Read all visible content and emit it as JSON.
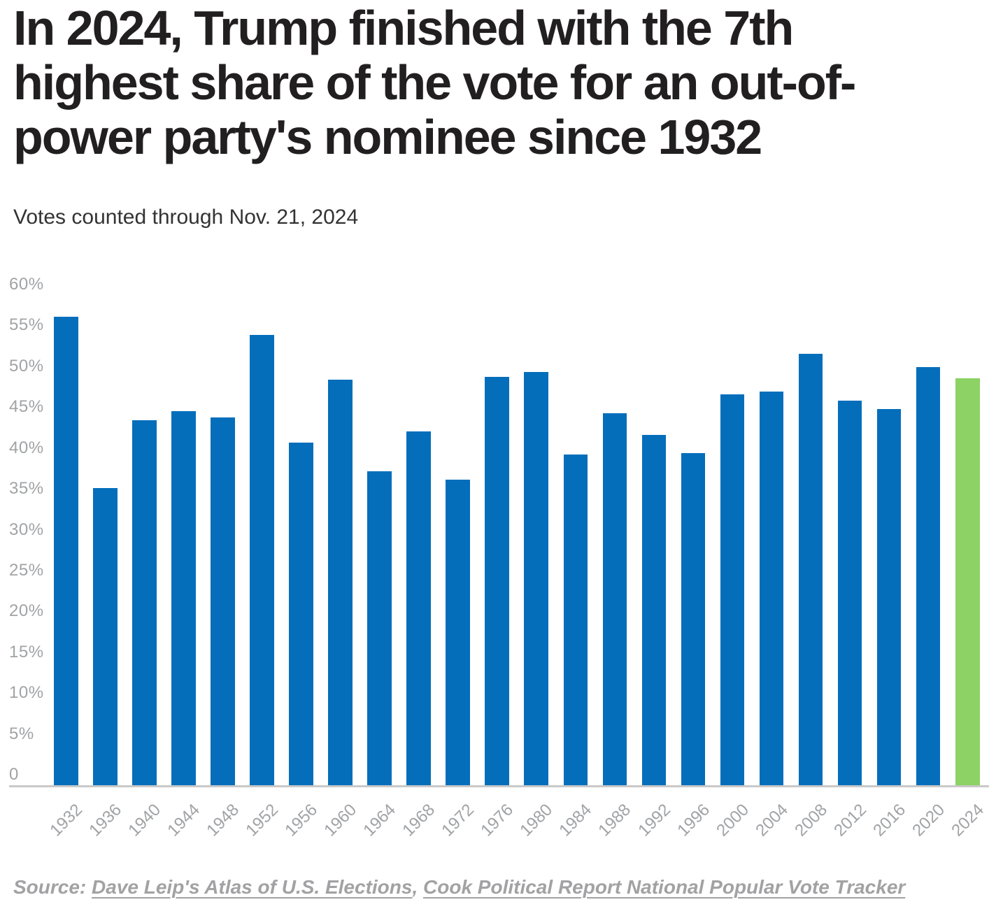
{
  "header": {
    "title": "In 2024, Trump finished with the 7th\nhighest share of the vote for an out-of-\npower party's nominee since 1932",
    "subtitle": "Votes counted through Nov. 21, 2024"
  },
  "chart_data": {
    "type": "bar",
    "title": "In 2024, Trump finished with the 7th highest share of the vote for an out-of-power party's nominee since 1932",
    "subtitle": "Votes counted through Nov. 21, 2024",
    "xlabel": "",
    "ylabel": "",
    "ylim": [
      0,
      60
    ],
    "grid": "off",
    "legend": "none",
    "categories": [
      "1932",
      "1936",
      "1940",
      "1944",
      "1948",
      "1952",
      "1956",
      "1960",
      "1964",
      "1968",
      "1972",
      "1976",
      "1980",
      "1984",
      "1988",
      "1992",
      "1996",
      "2000",
      "2004",
      "2008",
      "2012",
      "2016",
      "2020",
      "2024"
    ],
    "values": [
      57.4,
      36.5,
      44.8,
      45.9,
      45.1,
      55.2,
      42.0,
      49.7,
      38.5,
      43.4,
      37.5,
      50.1,
      50.7,
      40.6,
      45.6,
      43.0,
      40.7,
      47.9,
      48.3,
      52.9,
      47.2,
      46.1,
      51.3,
      49.9
    ],
    "highlight_category": "2024",
    "y_ticks": [
      {
        "value": 60,
        "label": "60%"
      },
      {
        "value": 55,
        "label": "55%"
      },
      {
        "value": 50,
        "label": "50%"
      },
      {
        "value": 45,
        "label": "45%"
      },
      {
        "value": 40,
        "label": "40%"
      },
      {
        "value": 35,
        "label": "35%"
      },
      {
        "value": 30,
        "label": "30%"
      },
      {
        "value": 25,
        "label": "25%"
      },
      {
        "value": 20,
        "label": "20%"
      },
      {
        "value": 15,
        "label": "15%"
      },
      {
        "value": 10,
        "label": "10%"
      },
      {
        "value": 5,
        "label": "5%"
      },
      {
        "value": 0,
        "label": "0"
      }
    ],
    "colors": {
      "bar": "#046EBB",
      "highlight": "#8CD264",
      "axis_line": "#C9C9C9",
      "tick_label": "#A1A3A6"
    }
  },
  "footer": {
    "source_prefix": "Source:",
    "separator": ", ",
    "links": [
      {
        "label": "Dave Leip's Atlas of U.S. Elections"
      },
      {
        "label": "Cook Political Report National Popular Vote Tracker"
      }
    ]
  }
}
